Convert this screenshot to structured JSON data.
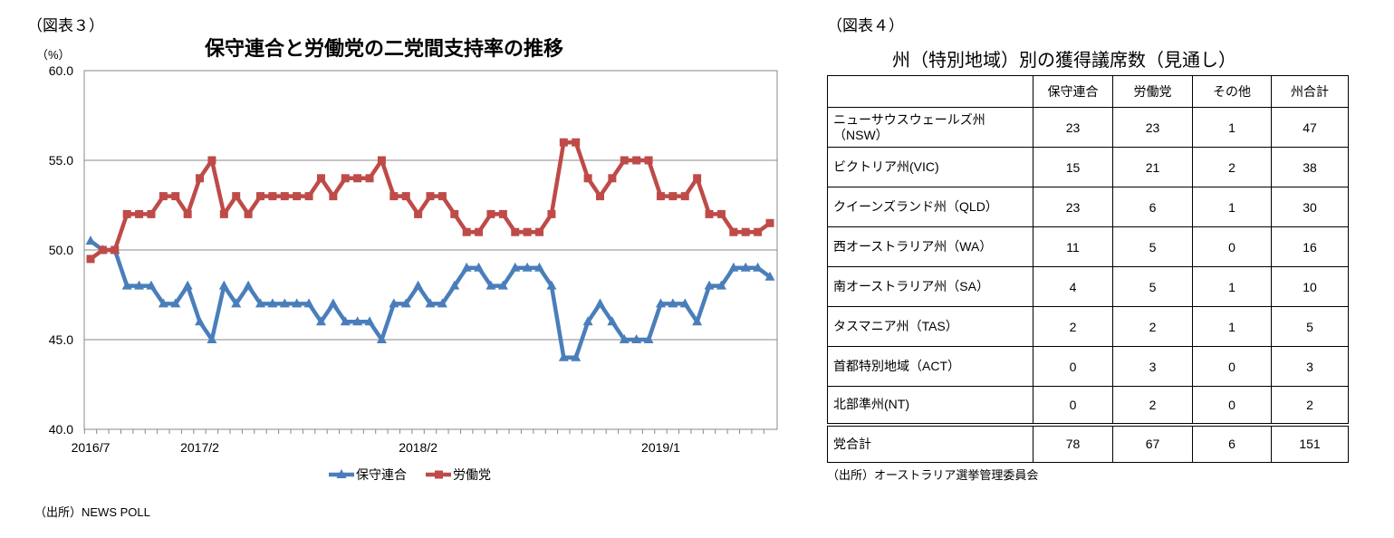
{
  "left_figure": {
    "label": "（図表３）",
    "source": "（出所）NEWS POLL"
  },
  "chart_data": {
    "type": "line",
    "title": "保守連合と労働党の二党間支持率の推移",
    "ylabel": "（%）",
    "xlabel": "",
    "ylim": [
      40,
      60
    ],
    "yticks": [
      "40.0",
      "45.0",
      "50.0",
      "55.0",
      "60.0"
    ],
    "xtick_labels": [
      {
        "index": 0,
        "label": "2016/7"
      },
      {
        "index": 9,
        "label": "2017/2"
      },
      {
        "index": 27,
        "label": "2018/2"
      },
      {
        "index": 47,
        "label": "2019/1"
      }
    ],
    "grid": true,
    "legend_position": "bottom",
    "series": [
      {
        "name": "保守連合",
        "color": "#4a7ebb",
        "marker": "triangle",
        "values": [
          50.5,
          50,
          50,
          48,
          48,
          48,
          47,
          47,
          48,
          46,
          45,
          48,
          47,
          48,
          47,
          47,
          47,
          47,
          47,
          46,
          47,
          46,
          46,
          46,
          45,
          47,
          47,
          48,
          47,
          47,
          48,
          49,
          49,
          48,
          48,
          49,
          49,
          49,
          48,
          44,
          44,
          46,
          47,
          46,
          45,
          45,
          45,
          47,
          47,
          47,
          46,
          48,
          48,
          49,
          49,
          49,
          48.5
        ]
      },
      {
        "name": "労働党",
        "color": "#be4b48",
        "marker": "square",
        "values": [
          49.5,
          50,
          50,
          52,
          52,
          52,
          53,
          53,
          52,
          54,
          55,
          52,
          53,
          52,
          53,
          53,
          53,
          53,
          53,
          54,
          53,
          54,
          54,
          54,
          55,
          53,
          53,
          52,
          53,
          53,
          52,
          51,
          51,
          52,
          52,
          51,
          51,
          51,
          52,
          56,
          56,
          54,
          53,
          54,
          55,
          55,
          55,
          53,
          53,
          53,
          54,
          52,
          52,
          51,
          51,
          51,
          51.5
        ]
      }
    ]
  },
  "right_figure": {
    "label": "（図表４）",
    "title": "州（特別地域）別の獲得議席数（見通し）",
    "source": "（出所）オーストラリア選挙管理委員会",
    "headers": [
      "",
      "保守連合",
      "労働党",
      "その他",
      "州合計"
    ],
    "rows": [
      {
        "name": "ニューサウスウェールズ州（NSW）",
        "values": [
          "23",
          "23",
          "1",
          "47"
        ]
      },
      {
        "name": "ビクトリア州(VIC)",
        "values": [
          "15",
          "21",
          "2",
          "38"
        ]
      },
      {
        "name": "クイーンズランド州（QLD）",
        "values": [
          "23",
          "6",
          "1",
          "30"
        ]
      },
      {
        "name": "西オーストラリア州（WA）",
        "values": [
          "11",
          "5",
          "0",
          "16"
        ]
      },
      {
        "name": "南オーストラリア州（SA）",
        "values": [
          "4",
          "5",
          "1",
          "10"
        ]
      },
      {
        "name": "タスマニア州（TAS）",
        "values": [
          "2",
          "2",
          "1",
          "5"
        ]
      },
      {
        "name": "首都特別地域（ACT）",
        "values": [
          "0",
          "3",
          "0",
          "3"
        ]
      },
      {
        "name": "北部準州(NT)",
        "values": [
          "0",
          "2",
          "0",
          "2"
        ]
      }
    ],
    "total": {
      "name": "党合計",
      "values": [
        "78",
        "67",
        "6",
        "151"
      ]
    }
  }
}
